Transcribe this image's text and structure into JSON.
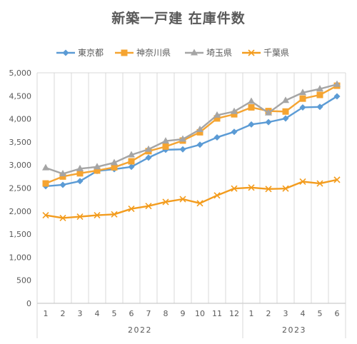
{
  "chart_data": {
    "type": "line",
    "title": "新築一戸建 在庫件数",
    "categories": [
      "1",
      "2",
      "3",
      "4",
      "5",
      "6",
      "7",
      "8",
      "9",
      "10",
      "11",
      "12",
      "1",
      "2",
      "3",
      "4",
      "5",
      "6"
    ],
    "year_groups": [
      {
        "label": "2022",
        "count": 12
      },
      {
        "label": "2023",
        "count": 6
      }
    ],
    "ylim": [
      0,
      5000
    ],
    "yticks": [
      0,
      500,
      1000,
      1500,
      2000,
      2500,
      3000,
      3500,
      4000,
      4500,
      5000
    ],
    "ytick_labels": [
      "0",
      "500",
      "1,000",
      "1,500",
      "2,000",
      "2,500",
      "3,000",
      "3,500",
      "4,000",
      "4,500",
      "5,000"
    ],
    "grid": "vertical",
    "legend_position": "top",
    "series": [
      {
        "name": "東京都",
        "color": "#5B9BD5",
        "marker": "diamond",
        "values": [
          2540,
          2570,
          2650,
          2870,
          2910,
          2960,
          3160,
          3330,
          3340,
          3440,
          3600,
          3720,
          3880,
          3930,
          4010,
          4250,
          4260,
          4490
        ]
      },
      {
        "name": "神奈川県",
        "color": "#F5A431",
        "marker": "square",
        "values": [
          2600,
          2750,
          2820,
          2880,
          2950,
          3080,
          3300,
          3400,
          3530,
          3710,
          4010,
          4100,
          4250,
          4170,
          4160,
          4440,
          4520,
          4720
        ]
      },
      {
        "name": "埼玉県",
        "color": "#A5A5A5",
        "marker": "triangle",
        "values": [
          2940,
          2810,
          2920,
          2960,
          3050,
          3220,
          3340,
          3520,
          3560,
          3770,
          4080,
          4160,
          4380,
          4130,
          4400,
          4570,
          4650,
          4750
        ]
      },
      {
        "name": "千葉県",
        "color": "#F39C1E",
        "marker": "x",
        "values": [
          1910,
          1850,
          1880,
          1910,
          1930,
          2050,
          2110,
          2200,
          2260,
          2170,
          2340,
          2490,
          2510,
          2480,
          2490,
          2640,
          2600,
          2680
        ]
      }
    ]
  }
}
